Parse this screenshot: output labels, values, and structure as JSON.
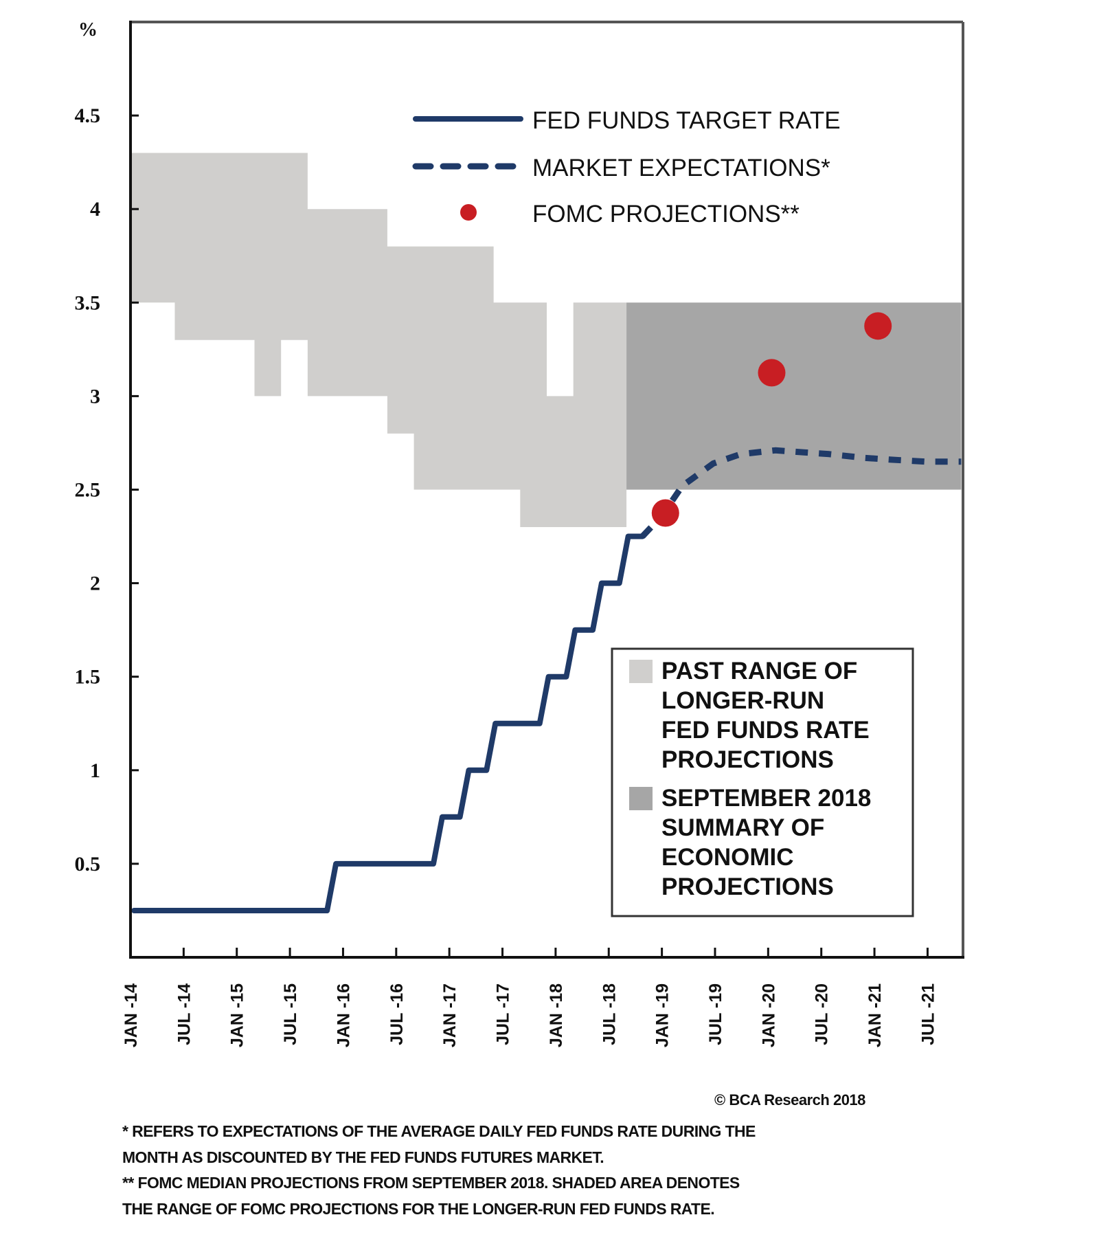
{
  "chart_data": {
    "type": "line",
    "title": "",
    "ylabel": "%",
    "xlabel": "",
    "ylim": [
      0,
      5
    ],
    "xlim_months_from_jan14": [
      0,
      94
    ],
    "grid": false,
    "y_ticks": [
      0.5,
      1,
      1.5,
      2,
      2.5,
      3,
      3.5,
      4,
      4.5
    ],
    "y_tick_labels": [
      "0.5",
      "1",
      "1.5",
      "2",
      "2.5",
      "3",
      "3.5",
      "4",
      "4.5"
    ],
    "x_tick_labels": [
      "JAN -14",
      "JUL -14",
      "JAN -15",
      "JUL -15",
      "JAN -16",
      "JUL -16",
      "JAN -17",
      "JUL -17",
      "JAN -18",
      "JUL -18",
      "JAN -19",
      "JUL -19",
      "JAN -20",
      "JUL -20",
      "JAN -21",
      "JUL -21"
    ],
    "x_unit_note": "x values are months since JAN-14",
    "series": [
      {
        "name": "FED FUNDS TARGET RATE",
        "style": "solid",
        "color": "#1f3a68",
        "points": [
          [
            0.4,
            0.25
          ],
          [
            22.2,
            0.25
          ],
          [
            23.2,
            0.5
          ],
          [
            34.2,
            0.5
          ],
          [
            35.2,
            0.75
          ],
          [
            37.2,
            0.75
          ],
          [
            38.2,
            1.0
          ],
          [
            40.2,
            1.0
          ],
          [
            41.2,
            1.25
          ],
          [
            46.2,
            1.25
          ],
          [
            47.2,
            1.5
          ],
          [
            49.2,
            1.5
          ],
          [
            50.2,
            1.75
          ],
          [
            52.2,
            1.75
          ],
          [
            53.2,
            2.0
          ],
          [
            55.2,
            2.0
          ],
          [
            56.2,
            2.25
          ],
          [
            57.8,
            2.25
          ]
        ]
      },
      {
        "name": "MARKET EXPECTATIONS*",
        "style": "dashed",
        "color": "#1f3a68",
        "points": [
          [
            57.8,
            2.25
          ],
          [
            60,
            2.36
          ],
          [
            62.3,
            2.52
          ],
          [
            65.8,
            2.64
          ],
          [
            68.9,
            2.69
          ],
          [
            72.8,
            2.71
          ],
          [
            75.9,
            2.7
          ],
          [
            78.9,
            2.69
          ],
          [
            82.8,
            2.67
          ],
          [
            85.9,
            2.66
          ],
          [
            89.8,
            2.65
          ],
          [
            93.8,
            2.65
          ]
        ]
      },
      {
        "name": "FOMC PROJECTIONS**",
        "style": "dots",
        "color": "#c81e23",
        "points": [
          [
            60.4,
            2.375
          ],
          [
            72.4,
            3.125
          ],
          [
            84.4,
            3.375
          ]
        ]
      }
    ],
    "past_range_band": {
      "name": "PAST RANGE OF LONGER-RUN FED FUNDS RATE PROJECTIONS",
      "color": "#d0cfcd",
      "upper": [
        [
          0,
          4.3
        ],
        [
          20,
          4.3
        ],
        [
          20,
          4.0
        ],
        [
          29,
          4.0
        ],
        [
          29,
          3.8
        ],
        [
          41,
          3.8
        ],
        [
          41,
          3.5
        ],
        [
          47,
          3.5
        ],
        [
          47,
          3.0
        ],
        [
          50,
          3.0
        ],
        [
          50,
          3.5
        ],
        [
          56,
          3.5
        ]
      ],
      "lower": [
        [
          0,
          3.5
        ],
        [
          5,
          3.5
        ],
        [
          5,
          3.3
        ],
        [
          14,
          3.3
        ],
        [
          14,
          3.0
        ],
        [
          17,
          3.0
        ],
        [
          17,
          3.3
        ],
        [
          20,
          3.3
        ],
        [
          20,
          3.0
        ],
        [
          29,
          3.0
        ],
        [
          29,
          2.8
        ],
        [
          32,
          2.8
        ],
        [
          32,
          2.5
        ],
        [
          44,
          2.5
        ],
        [
          44,
          2.3
        ],
        [
          56,
          2.3
        ]
      ]
    },
    "sep2018_band": {
      "name": "SEPTEMBER 2018 SUMMARY OF ECONOMIC PROJECTIONS",
      "color": "#a6a6a6",
      "x_from": 56,
      "x_to": 93.8,
      "low": 2.5,
      "high": 3.5
    },
    "legend_top": {
      "placement": "top-right",
      "items": [
        {
          "label": "FED FUNDS TARGET RATE",
          "type": "solid-line"
        },
        {
          "label": "MARKET EXPECTATIONS*",
          "type": "dashed-line"
        },
        {
          "label": "FOMC PROJECTIONS**",
          "type": "dot"
        }
      ]
    },
    "legend_box": {
      "placement": "bottom-right",
      "items": [
        {
          "lines": [
            "PAST RANGE OF",
            "LONGER-RUN",
            "FED FUNDS RATE",
            "PROJECTIONS"
          ],
          "swatch": "#d0cfcd"
        },
        {
          "lines": [
            "SEPTEMBER 2018",
            "SUMMARY OF",
            "ECONOMIC",
            "PROJECTIONS"
          ],
          "swatch": "#a6a6a6"
        }
      ]
    }
  },
  "copyright": "© BCA Research 2018",
  "footnotes": [
    "*   REFERS TO EXPECTATIONS OF THE AVERAGE DAILY FED FUNDS RATE DURING THE",
    "MONTH AS DISCOUNTED BY THE FED FUNDS FUTURES MARKET.",
    "** FOMC MEDIAN PROJECTIONS FROM SEPTEMBER 2018. SHADED AREA DENOTES",
    "THE RANGE OF FOMC PROJECTIONS FOR THE LONGER-RUN FED FUNDS RATE."
  ]
}
